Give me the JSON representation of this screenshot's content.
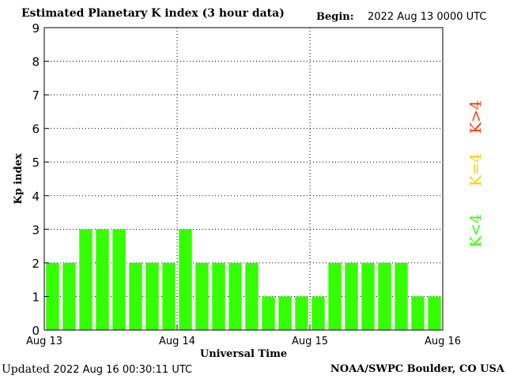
{
  "header": {
    "title": "Estimated Planetary K index (3 hour data)",
    "begin_label": "Begin:",
    "begin_value": "2022 Aug 13 0000 UTC"
  },
  "footer": {
    "updated_label": "Updated",
    "updated_value": "2022 Aug 16 00:30:11 UTC",
    "source": "NOAA/SWPC Boulder, CO USA"
  },
  "legend": [
    {
      "label": "K>4",
      "color": "#ff3300"
    },
    {
      "label": "K=4",
      "color": "#ffcc00"
    },
    {
      "label": "K<4",
      "color": "#33ff00"
    }
  ],
  "chart_data": {
    "type": "bar",
    "title": "Estimated Planetary K index (3 hour data)",
    "xlabel": "Universal Time",
    "ylabel": "Kp index",
    "ylim": [
      0,
      9
    ],
    "yticks": [
      "0",
      "1",
      "2",
      "3",
      "4",
      "5",
      "6",
      "7",
      "8",
      "9"
    ],
    "xticks": [
      "Aug 13",
      "Aug 14",
      "Aug 15",
      "Aug 16"
    ],
    "grid": true,
    "bar_color": "#33ff00",
    "values": [
      2,
      2,
      3,
      3,
      3,
      2,
      2,
      2,
      3,
      2,
      2,
      2,
      2,
      1,
      1,
      1,
      1,
      2,
      2,
      2,
      2,
      2,
      1,
      1
    ]
  }
}
